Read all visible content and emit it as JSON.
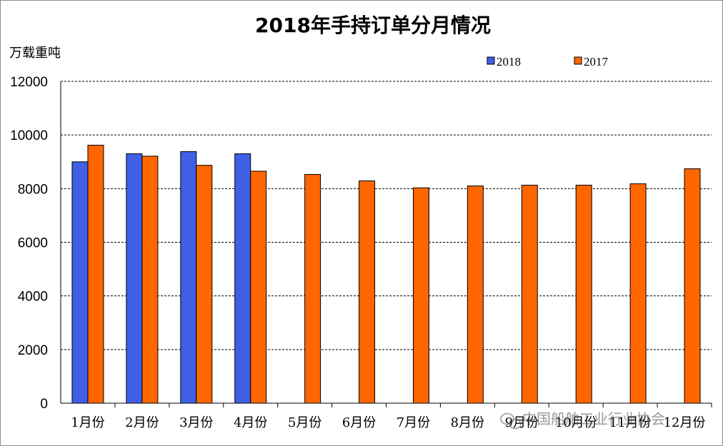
{
  "chart_data": {
    "type": "bar",
    "title": "2018年手持订单分月情况",
    "ylabel": "万载重吨",
    "xlabel": "",
    "categories": [
      "1月份",
      "2月份",
      "3月份",
      "4月份",
      "5月份",
      "6月份",
      "7月份",
      "8月份",
      "9月份",
      "10月份",
      "11月份",
      "12月份"
    ],
    "series": [
      {
        "name": "2018",
        "color": "#3f5fe6",
        "values": [
          9000,
          9300,
          9380,
          9300,
          null,
          null,
          null,
          null,
          null,
          null,
          null,
          null
        ]
      },
      {
        "name": "2017",
        "color": "#ff6600",
        "values": [
          9620,
          9210,
          8870,
          8650,
          8530,
          8290,
          8030,
          8100,
          8130,
          8130,
          8180,
          8740
        ]
      }
    ],
    "ylim": [
      0,
      12000
    ],
    "yticks": [
      0,
      2000,
      4000,
      6000,
      8000,
      10000,
      12000
    ],
    "grid": true,
    "legend_position": "top-right"
  },
  "watermark": {
    "icon": "wechat-icon",
    "text": "中国船舶工业行业协会"
  }
}
